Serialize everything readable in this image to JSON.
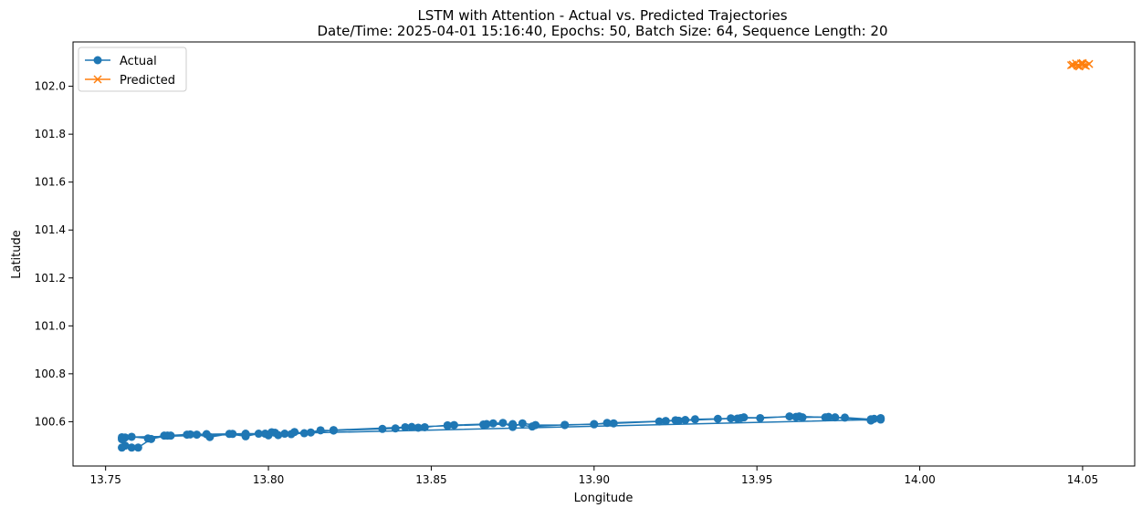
{
  "chart_data": {
    "type": "line",
    "title": "LSTM with Attention - Actual vs. Predicted Trajectories",
    "subtitle": "Date/Time: 2025-04-01 15:16:40, Epochs: 50, Batch Size: 64, Sequence Length: 20",
    "xlabel": "Longitude",
    "ylabel": "Latitude",
    "xlim": [
      13.74,
      14.066
    ],
    "ylim": [
      100.415,
      102.185
    ],
    "xticks": [
      "13.75",
      "13.80",
      "13.85",
      "13.90",
      "13.95",
      "14.00",
      "14.05"
    ],
    "yticks": [
      "100.6",
      "100.8",
      "101.0",
      "101.2",
      "101.4",
      "101.6",
      "101.8",
      "102.0"
    ],
    "legend_position": "top-left",
    "grid": false,
    "series": [
      {
        "name": "Actual",
        "color": "#1f77b4",
        "marker": "circle",
        "x": [
          13.988,
          13.986,
          13.985,
          13.974,
          13.972,
          13.964,
          13.962,
          13.96,
          13.951,
          13.946,
          13.944,
          13.942,
          13.938,
          13.931,
          13.928,
          13.925,
          13.922,
          13.92,
          13.906,
          13.9,
          13.891,
          13.882,
          13.878,
          13.875,
          13.872,
          13.869,
          13.867,
          13.857,
          13.855,
          13.848,
          13.846,
          13.844,
          13.839,
          13.835,
          13.82,
          13.816,
          13.811,
          13.808,
          13.805,
          13.802,
          13.8,
          13.797,
          13.793,
          13.788,
          13.782,
          13.778,
          13.775,
          13.77,
          13.768,
          13.763,
          13.758,
          13.756,
          13.755,
          13.758,
          13.756,
          13.755,
          13.76,
          13.764,
          13.769,
          13.776,
          13.781,
          13.789,
          13.793,
          13.799,
          13.801,
          13.803,
          13.807,
          13.813,
          13.82,
          13.842,
          13.855,
          13.866,
          13.875,
          13.881,
          13.891,
          13.9,
          13.904,
          13.926,
          13.945,
          13.963,
          13.971,
          13.977,
          13.985,
          13.988,
          13.755
        ],
        "y": [
          100.615,
          100.612,
          100.605,
          100.618,
          100.62,
          100.618,
          100.62,
          100.622,
          100.615,
          100.618,
          100.613,
          100.614,
          100.612,
          100.61,
          100.607,
          100.606,
          100.603,
          100.601,
          100.593,
          100.59,
          100.586,
          100.586,
          100.593,
          100.578,
          100.595,
          100.593,
          100.59,
          100.586,
          100.585,
          100.577,
          100.575,
          100.578,
          100.572,
          100.57,
          100.563,
          100.564,
          100.552,
          100.557,
          100.55,
          100.554,
          100.543,
          100.55,
          100.539,
          100.549,
          100.536,
          100.546,
          100.546,
          100.542,
          100.542,
          100.53,
          100.537,
          100.534,
          100.527,
          100.492,
          100.5,
          100.492,
          100.492,
          100.528,
          100.542,
          100.547,
          100.548,
          100.549,
          100.55,
          100.55,
          100.556,
          100.544,
          100.548,
          100.555,
          100.565,
          100.577,
          100.583,
          100.588,
          100.59,
          100.58,
          100.587,
          100.589,
          100.595,
          100.604,
          100.615,
          100.622,
          100.618,
          100.617,
          100.61,
          100.609,
          100.535
        ]
      },
      {
        "name": "Predicted",
        "color": "#ff7f0e",
        "marker": "x",
        "x": [
          14.0465,
          14.048,
          14.049,
          14.05,
          14.051,
          14.052,
          14.0505,
          14.0495,
          14.0485,
          14.047,
          14.05
        ],
        "y": [
          102.088,
          102.095,
          102.083,
          102.097,
          102.085,
          102.093,
          102.088,
          102.095,
          102.085,
          102.09,
          102.092
        ]
      }
    ]
  }
}
